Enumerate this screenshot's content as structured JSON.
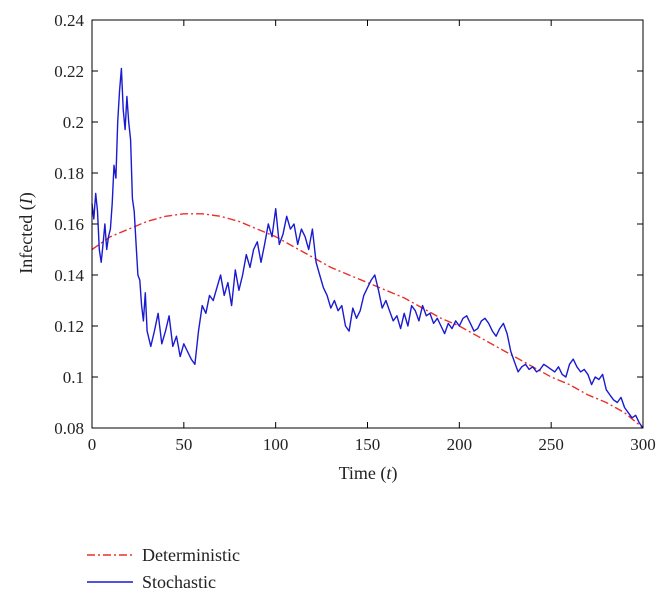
{
  "chart_data": {
    "type": "line",
    "title": "",
    "xlabel": "Time",
    "xlabel_var": "t",
    "ylabel": "Infected",
    "ylabel_var": "I",
    "xlim": [
      0,
      300
    ],
    "ylim": [
      0.08,
      0.24
    ],
    "xticks": [
      0,
      50,
      100,
      150,
      200,
      250,
      300
    ],
    "yticks": [
      0.08,
      0.1,
      0.12,
      0.14,
      0.16,
      0.18,
      0.2,
      0.22,
      0.24
    ],
    "ytick_labels": [
      "0.08",
      "0.1",
      "0.12",
      "0.14",
      "0.16",
      "0.18",
      "0.2",
      "0.22",
      "0.24"
    ],
    "grid": false,
    "legend_position": "below",
    "series": [
      {
        "name": "Deterministic",
        "color": "#e8302a",
        "style": "dash-dot",
        "x": [
          0,
          10,
          20,
          30,
          40,
          50,
          60,
          70,
          80,
          90,
          100,
          110,
          120,
          130,
          140,
          150,
          160,
          170,
          180,
          190,
          200,
          210,
          220,
          230,
          240,
          250,
          260,
          270,
          280,
          290,
          300
        ],
        "y": [
          0.15,
          0.155,
          0.158,
          0.161,
          0.163,
          0.164,
          0.164,
          0.163,
          0.161,
          0.158,
          0.155,
          0.151,
          0.147,
          0.143,
          0.14,
          0.137,
          0.134,
          0.131,
          0.127,
          0.123,
          0.12,
          0.116,
          0.112,
          0.108,
          0.104,
          0.1,
          0.097,
          0.093,
          0.09,
          0.086,
          0.08
        ]
      },
      {
        "name": "Stochastic",
        "color": "#1a1ad0",
        "style": "solid",
        "x": [
          0,
          1,
          2,
          3,
          4,
          5,
          6,
          7,
          8,
          9,
          10,
          11,
          12,
          13,
          14,
          15,
          16,
          17,
          18,
          19,
          20,
          21,
          22,
          23,
          24,
          25,
          26,
          27,
          28,
          29,
          30,
          32,
          34,
          36,
          38,
          40,
          42,
          44,
          46,
          48,
          50,
          52,
          54,
          56,
          58,
          60,
          62,
          64,
          66,
          68,
          70,
          72,
          74,
          76,
          78,
          80,
          82,
          84,
          86,
          88,
          90,
          92,
          94,
          96,
          98,
          100,
          102,
          104,
          106,
          108,
          110,
          112,
          114,
          116,
          118,
          120,
          122,
          124,
          126,
          128,
          130,
          132,
          134,
          136,
          138,
          140,
          142,
          144,
          146,
          148,
          150,
          152,
          154,
          156,
          158,
          160,
          162,
          164,
          166,
          168,
          170,
          172,
          174,
          176,
          178,
          180,
          182,
          184,
          186,
          188,
          190,
          192,
          194,
          196,
          198,
          200,
          202,
          204,
          206,
          208,
          210,
          212,
          214,
          216,
          218,
          220,
          222,
          224,
          226,
          228,
          230,
          232,
          234,
          236,
          238,
          240,
          242,
          244,
          246,
          248,
          250,
          252,
          254,
          256,
          258,
          260,
          262,
          264,
          266,
          268,
          270,
          272,
          274,
          276,
          278,
          280,
          282,
          284,
          286,
          288,
          290,
          292,
          294,
          296,
          298,
          300
        ],
        "y": [
          0.168,
          0.162,
          0.172,
          0.165,
          0.15,
          0.145,
          0.152,
          0.16,
          0.15,
          0.155,
          0.158,
          0.168,
          0.183,
          0.178,
          0.2,
          0.212,
          0.221,
          0.205,
          0.197,
          0.21,
          0.2,
          0.193,
          0.17,
          0.165,
          0.152,
          0.14,
          0.138,
          0.128,
          0.122,
          0.133,
          0.118,
          0.112,
          0.118,
          0.125,
          0.113,
          0.118,
          0.124,
          0.112,
          0.116,
          0.108,
          0.113,
          0.11,
          0.107,
          0.105,
          0.118,
          0.128,
          0.125,
          0.132,
          0.13,
          0.135,
          0.14,
          0.132,
          0.137,
          0.128,
          0.142,
          0.134,
          0.14,
          0.148,
          0.143,
          0.15,
          0.153,
          0.145,
          0.152,
          0.16,
          0.155,
          0.166,
          0.152,
          0.156,
          0.163,
          0.158,
          0.16,
          0.152,
          0.158,
          0.155,
          0.15,
          0.158,
          0.145,
          0.14,
          0.135,
          0.132,
          0.127,
          0.13,
          0.126,
          0.128,
          0.12,
          0.118,
          0.127,
          0.123,
          0.126,
          0.132,
          0.135,
          0.138,
          0.14,
          0.134,
          0.127,
          0.13,
          0.126,
          0.122,
          0.124,
          0.119,
          0.125,
          0.12,
          0.128,
          0.126,
          0.122,
          0.128,
          0.124,
          0.125,
          0.121,
          0.123,
          0.12,
          0.117,
          0.121,
          0.119,
          0.122,
          0.12,
          0.123,
          0.124,
          0.121,
          0.118,
          0.119,
          0.122,
          0.123,
          0.121,
          0.118,
          0.116,
          0.119,
          0.121,
          0.117,
          0.11,
          0.106,
          0.102,
          0.104,
          0.105,
          0.103,
          0.104,
          0.102,
          0.103,
          0.105,
          0.104,
          0.103,
          0.102,
          0.104,
          0.101,
          0.1,
          0.105,
          0.107,
          0.104,
          0.102,
          0.103,
          0.101,
          0.097,
          0.1,
          0.099,
          0.101,
          0.095,
          0.093,
          0.091,
          0.09,
          0.092,
          0.088,
          0.086,
          0.084,
          0.085,
          0.082,
          0.08
        ]
      }
    ]
  }
}
